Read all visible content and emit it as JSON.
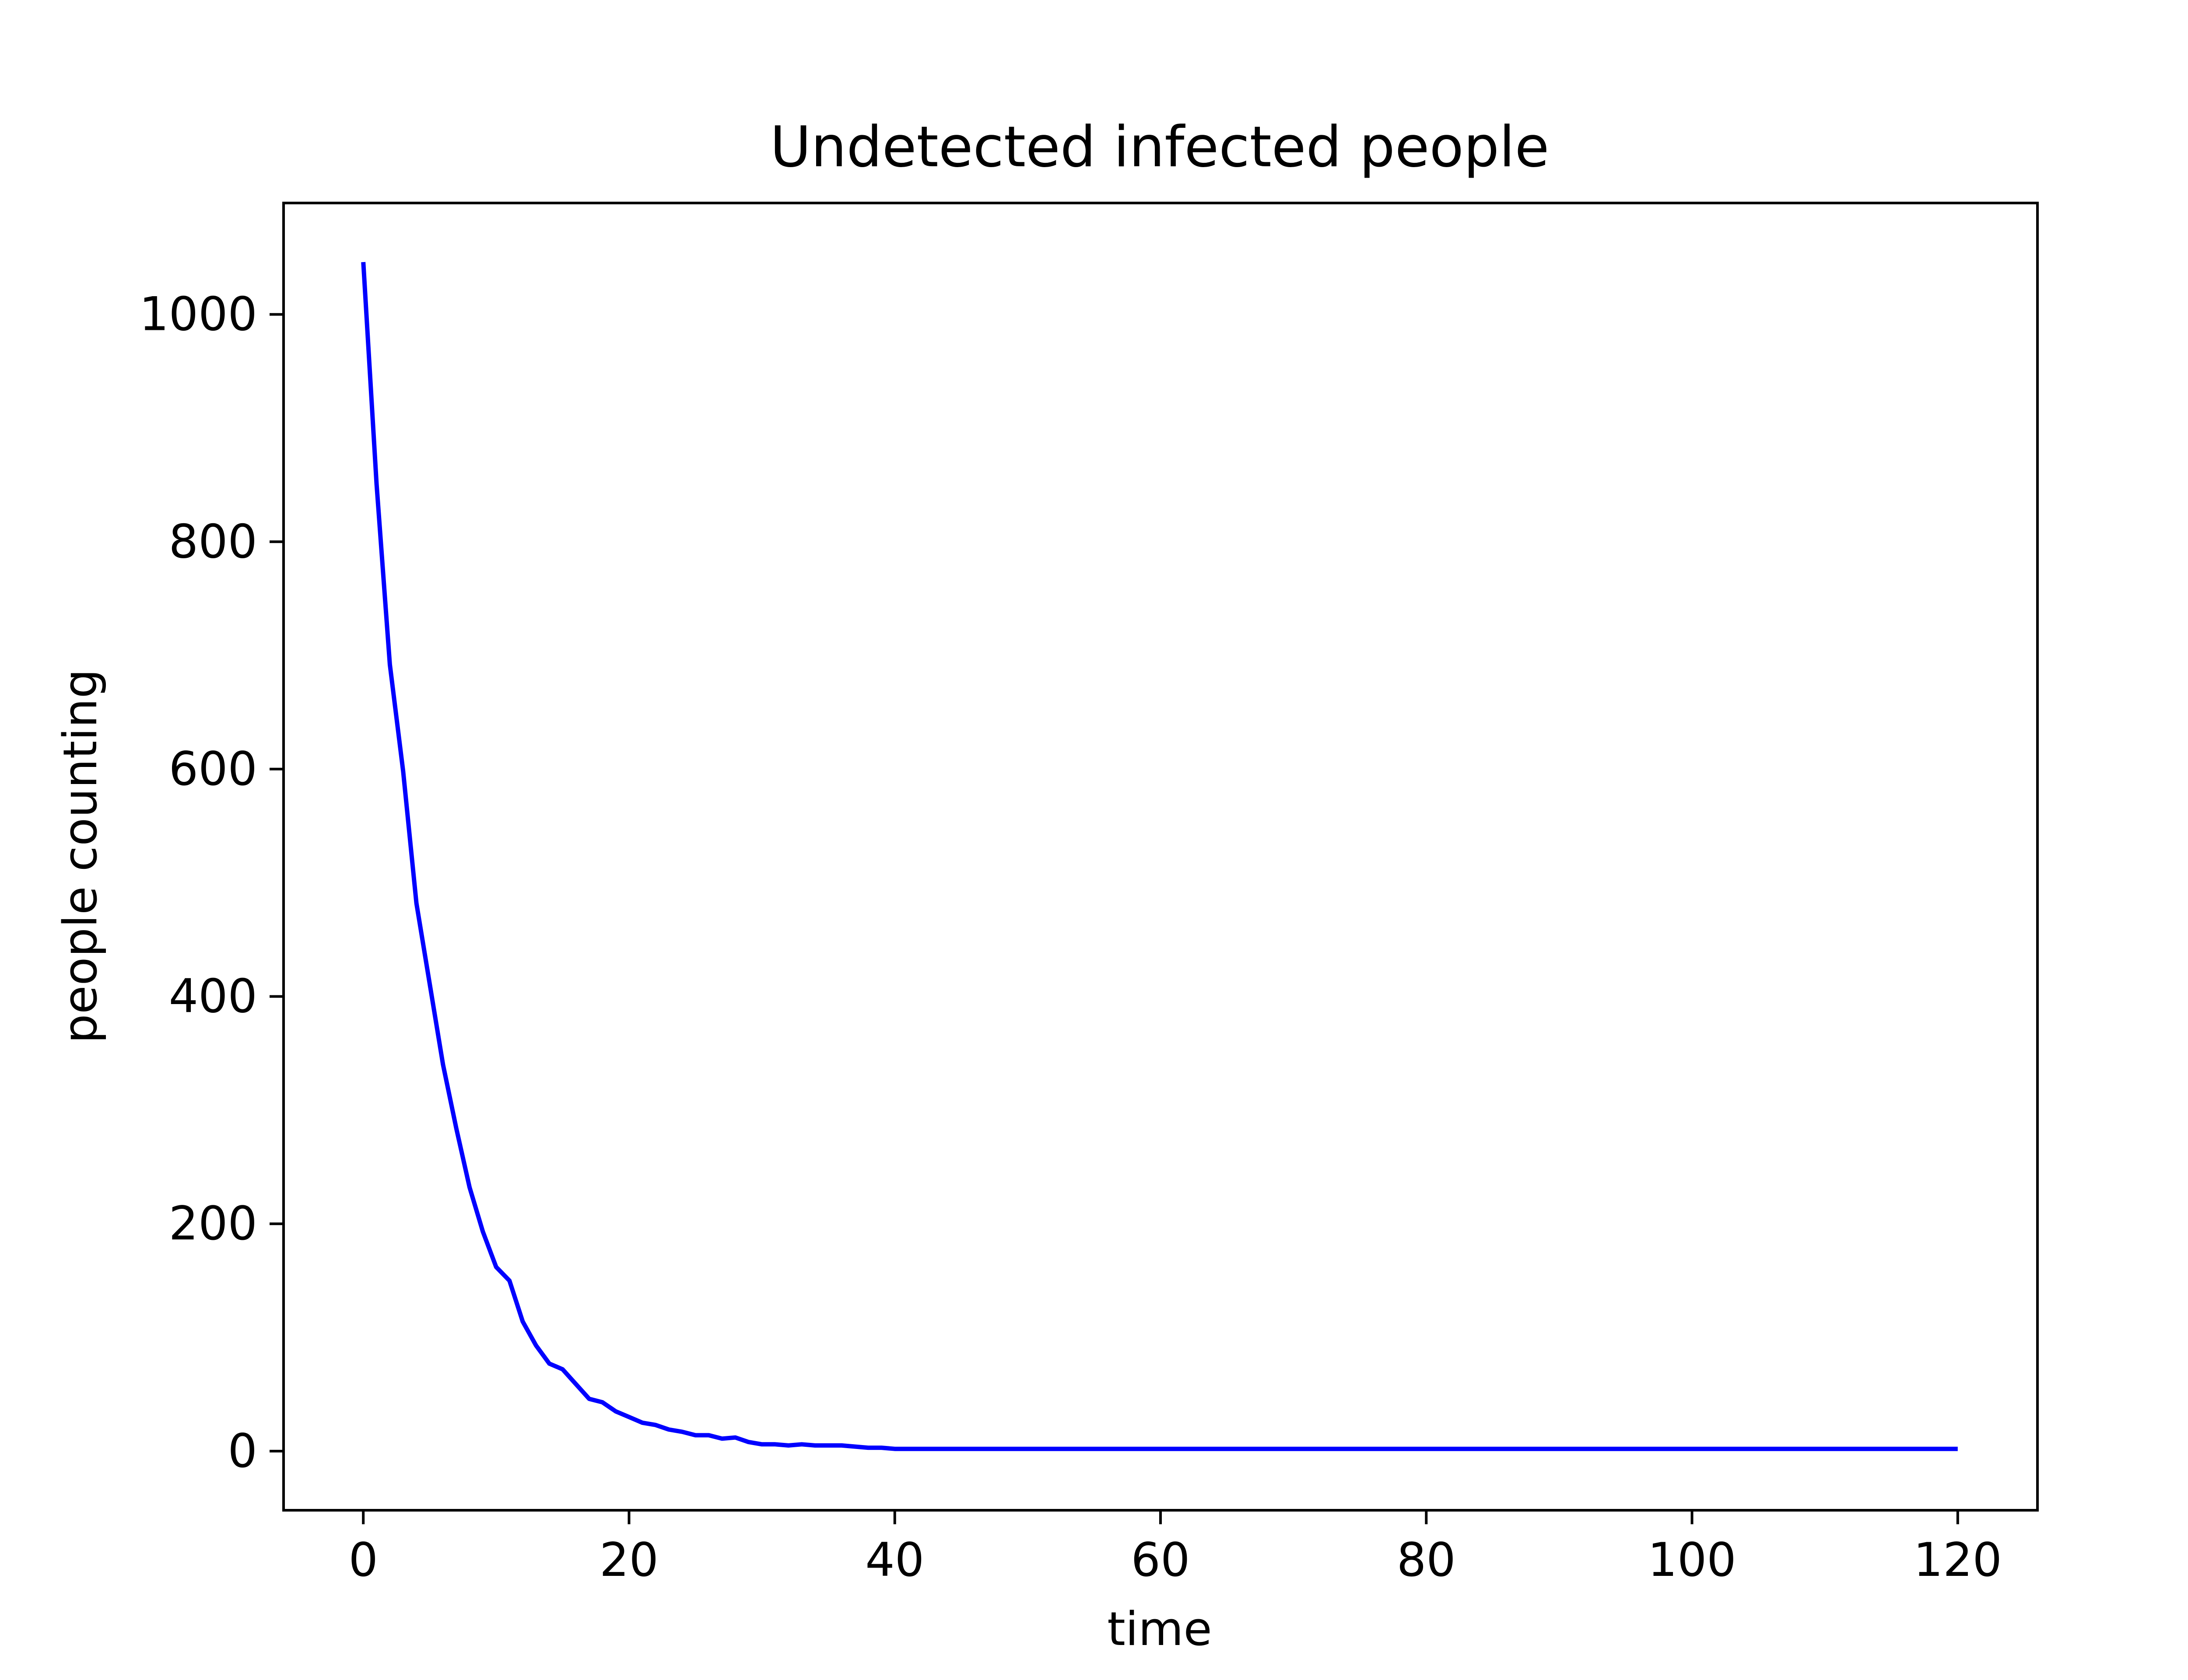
{
  "chart_data": {
    "type": "line",
    "title": "Undetected infected people",
    "xlabel": "time",
    "ylabel": "people counting",
    "xlim": [
      -6,
      126
    ],
    "ylim": [
      -52,
      1098
    ],
    "x_ticks": [
      0,
      20,
      40,
      60,
      80,
      100,
      120
    ],
    "y_ticks": [
      0,
      200,
      400,
      600,
      800,
      1000
    ],
    "grid": false,
    "colors": {
      "series": "#0000ff",
      "frame": "#000000",
      "background": "#ffffff"
    },
    "series": [
      {
        "x": [
          0,
          1,
          2,
          3,
          4,
          5,
          6,
          7,
          8,
          9,
          10,
          11,
          12,
          13,
          14,
          15,
          16,
          17,
          18,
          19,
          20,
          21,
          22,
          23,
          24,
          25,
          26,
          27,
          28,
          29,
          30,
          31,
          32,
          33,
          34,
          35,
          36,
          37,
          38,
          39,
          40,
          41,
          42,
          43,
          44,
          45,
          46,
          47,
          48,
          49,
          50,
          51,
          52,
          53,
          54,
          55,
          56,
          57,
          58,
          59,
          60,
          61,
          62,
          63,
          64,
          65,
          66,
          67,
          68,
          69,
          70,
          71,
          72,
          73,
          74,
          75,
          76,
          77,
          78,
          79,
          80,
          81,
          82,
          83,
          84,
          85,
          86,
          87,
          88,
          89,
          90,
          91,
          92,
          93,
          94,
          95,
          96,
          97,
          98,
          99,
          100,
          101,
          102,
          103,
          104,
          105,
          106,
          107,
          108,
          109,
          110,
          111,
          112,
          113,
          114,
          115,
          116,
          117,
          118,
          119,
          120
        ],
        "values": [
          1046,
          851,
          692,
          598,
          482,
          411,
          340,
          284,
          232,
          193,
          162,
          150,
          114,
          93,
          77,
          72,
          59,
          46,
          43,
          35,
          30,
          25,
          23,
          19,
          17,
          14,
          14,
          11,
          12,
          8,
          6,
          6,
          5,
          6,
          5,
          5,
          5,
          4,
          3,
          3,
          2,
          2,
          2,
          2,
          2,
          2,
          2,
          2,
          2,
          2,
          2,
          2,
          2,
          2,
          2,
          2,
          2,
          2,
          2,
          2,
          2,
          2,
          2,
          2,
          2,
          2,
          2,
          2,
          2,
          2,
          2,
          2,
          2,
          2,
          2,
          2,
          2,
          2,
          2,
          2,
          2,
          2,
          2,
          2,
          2,
          2,
          2,
          2,
          2,
          2,
          2,
          2,
          2,
          2,
          2,
          2,
          2,
          2,
          2,
          2,
          2,
          2,
          2,
          2,
          2,
          2,
          2,
          2,
          2,
          2,
          2,
          2,
          2,
          2,
          2,
          2,
          2,
          2,
          2,
          2,
          2
        ]
      }
    ]
  }
}
